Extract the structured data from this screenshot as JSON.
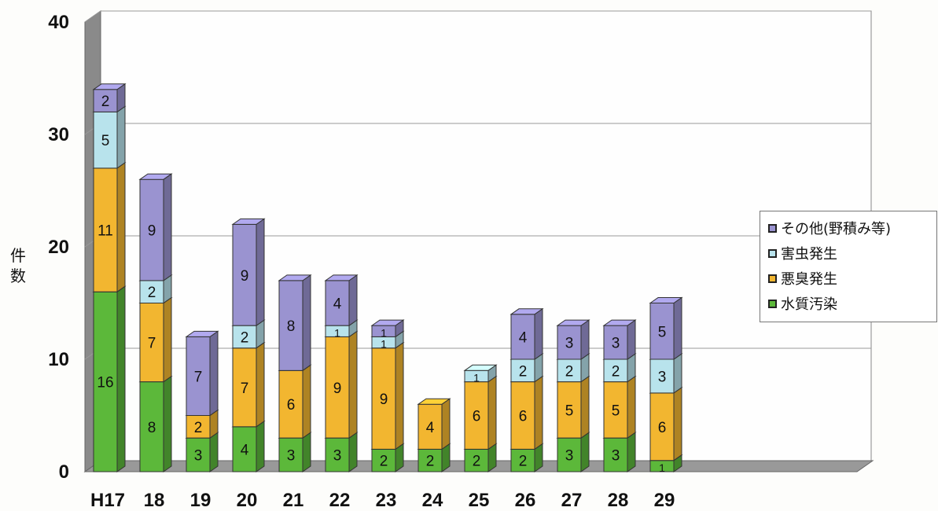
{
  "chart_data": {
    "type": "bar",
    "stacked": true,
    "three_d": true,
    "categories": [
      "H17",
      "18",
      "19",
      "20",
      "21",
      "22",
      "23",
      "24",
      "25",
      "26",
      "27",
      "28",
      "29"
    ],
    "series": [
      {
        "name": "水質汚染",
        "color": "#5cb83a",
        "values": [
          16,
          8,
          3,
          4,
          3,
          3,
          2,
          2,
          2,
          2,
          3,
          3,
          1
        ],
        "labels": [
          "16",
          "8",
          "3",
          "4",
          "3",
          "3",
          "2",
          "2",
          "2",
          "2",
          "3",
          "3",
          "1"
        ]
      },
      {
        "name": "悪臭発生",
        "color": "#f2b630",
        "values": [
          11,
          7,
          2,
          7,
          6,
          9,
          9,
          4,
          6,
          6,
          5,
          5,
          6
        ],
        "labels": [
          "11",
          "7",
          "2",
          "7",
          "6",
          "9",
          "9",
          "4",
          "6",
          "6",
          "5",
          "5",
          "6"
        ]
      },
      {
        "name": "害虫発生",
        "color": "#b8e3ec",
        "values": [
          5,
          2,
          0,
          2,
          0,
          1,
          1,
          0,
          1,
          2,
          2,
          2,
          3
        ],
        "labels": [
          "5",
          "2",
          "",
          "2",
          "",
          "1",
          "1",
          "",
          "1",
          "2",
          "2",
          "2",
          "3"
        ]
      },
      {
        "name": "その他(野積み等)",
        "color": "#9a93d0",
        "values": [
          2,
          9,
          7,
          9,
          8,
          4,
          1,
          0,
          0,
          4,
          3,
          3,
          5
        ],
        "labels": [
          "2",
          "9",
          "7",
          "9",
          "8",
          "4",
          "1",
          "",
          "",
          "4",
          "3",
          "3",
          "5"
        ]
      }
    ],
    "legend_order": [
      "その他(野積み等)",
      "害虫発生",
      "悪臭発生",
      "水質汚染"
    ],
    "legend_position": "right",
    "ylabel": "件数",
    "xlabel": "",
    "ylim": [
      0,
      40
    ],
    "yticks": [
      "0",
      "10",
      "20",
      "30",
      "40"
    ],
    "grid": true
  }
}
